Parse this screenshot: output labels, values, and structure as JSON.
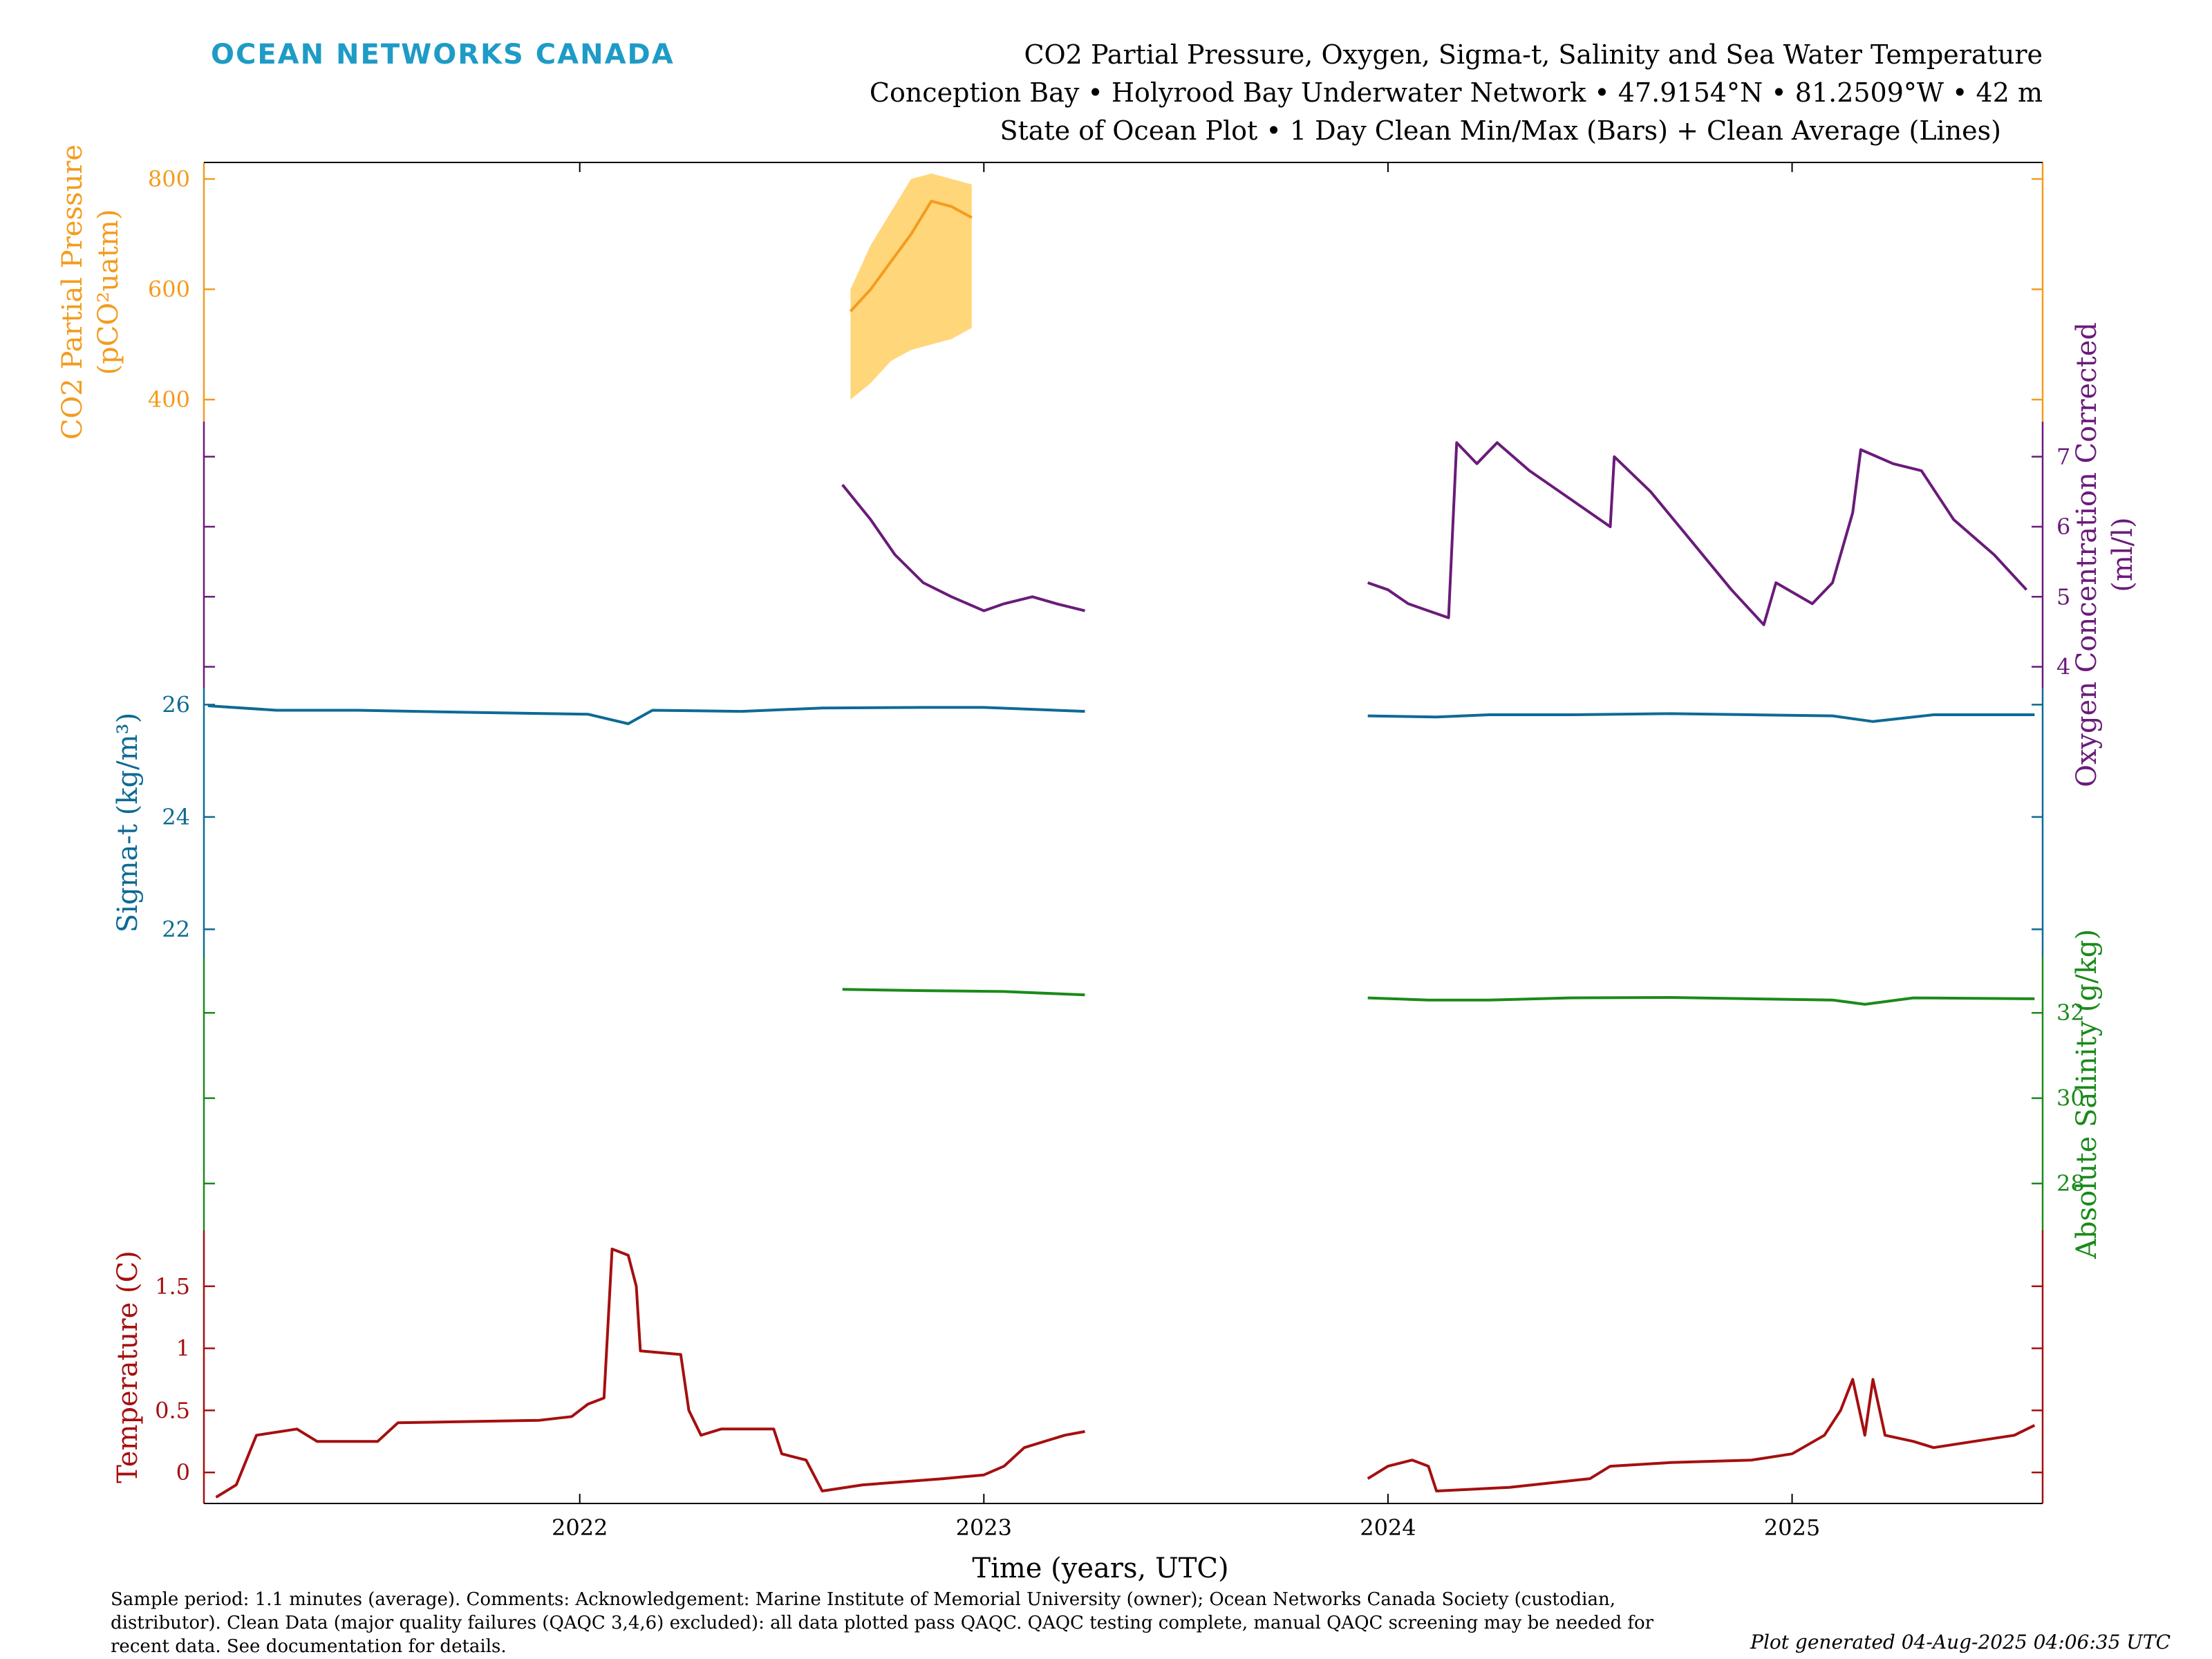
{
  "header": {
    "brand": "OCEAN NETWORKS CANADA",
    "title_line1": "CO2 Partial Pressure, Oxygen, Sigma-t, Salinity and Sea Water Temperature",
    "title_line2": "Conception Bay • Holyrood Bay Underwater Network • 47.9154°N • 81.2509°W • 42 m",
    "title_line3": "State of Ocean Plot • 1 Day Clean Min/Max (Bars) + Clean Average (Lines)"
  },
  "footer": {
    "line1": "Sample period: 1.1 minutes (average). Comments: Acknowledgement: Marine Institute of Memorial University (owner); Ocean Networks Canada Society (custodian,",
    "line2": "distributor). Clean Data (major quality failures (QAQC 3,4,6) excluded): all data plotted pass QAQC. QAQC testing complete, manual QAQC screening may be needed for",
    "line3": "recent data. See documentation for details.",
    "generated": "Plot generated 04-Aug-2025 04:06:35 UTC"
  },
  "chart_data": {
    "type": "line",
    "xlabel": "Time (years, UTC)",
    "xlim": [
      2021.07,
      2025.62
    ],
    "x_ticks": [
      "2022",
      "2023",
      "2024",
      "2025"
    ],
    "x_tick_values": [
      2022,
      2023,
      2024,
      2025
    ],
    "panels": [
      {
        "id": "co2",
        "ylabel_line1": "CO2 Partial Pressure",
        "ylabel_line2": "(pCO²uatm)",
        "side": "left",
        "color": "#f39c1f",
        "band_color": "#ffd67a",
        "ylim": [
          360,
          830
        ],
        "y_ticks": [
          400,
          600,
          800
        ],
        "segments": [
          {
            "avg": [
              [
                2022.67,
                560
              ],
              [
                2022.72,
                600
              ],
              [
                2022.77,
                650
              ],
              [
                2022.82,
                700
              ],
              [
                2022.87,
                760
              ],
              [
                2022.92,
                750
              ],
              [
                2022.97,
                730
              ]
            ],
            "min": [
              [
                2022.67,
                400
              ],
              [
                2022.72,
                430
              ],
              [
                2022.77,
                470
              ],
              [
                2022.82,
                490
              ],
              [
                2022.87,
                500
              ],
              [
                2022.92,
                510
              ],
              [
                2022.97,
                530
              ]
            ],
            "max": [
              [
                2022.67,
                600
              ],
              [
                2022.72,
                680
              ],
              [
                2022.77,
                740
              ],
              [
                2022.82,
                800
              ],
              [
                2022.87,
                810
              ],
              [
                2022.92,
                800
              ],
              [
                2022.97,
                790
              ]
            ]
          }
        ]
      },
      {
        "id": "oxygen",
        "ylabel_line1": "Oxygen Concentration Corrected",
        "ylabel_line2": "(ml/l)",
        "side": "right",
        "color": "#6a1b7a",
        "band_color": "#d8cdea",
        "ylim": [
          3.7,
          7.5
        ],
        "y_ticks": [
          4,
          5,
          6,
          7
        ],
        "segments": [
          {
            "avg": [
              [
                2022.65,
                6.6
              ],
              [
                2022.72,
                6.1
              ],
              [
                2022.78,
                5.6
              ],
              [
                2022.85,
                5.2
              ],
              [
                2022.92,
                5.0
              ],
              [
                2023.0,
                4.8
              ],
              [
                2023.05,
                4.9
              ],
              [
                2023.12,
                5.0
              ],
              [
                2023.18,
                4.9
              ],
              [
                2023.25,
                4.8
              ]
            ]
          },
          {
            "avg": [
              [
                2023.95,
                5.2
              ],
              [
                2024.0,
                5.1
              ],
              [
                2024.05,
                4.9
              ],
              [
                2024.1,
                4.8
              ],
              [
                2024.15,
                4.7
              ],
              [
                2024.17,
                7.2
              ],
              [
                2024.22,
                6.9
              ],
              [
                2024.27,
                7.2
              ],
              [
                2024.35,
                6.8
              ],
              [
                2024.45,
                6.4
              ],
              [
                2024.55,
                6.0
              ],
              [
                2024.56,
                7.0
              ],
              [
                2024.65,
                6.5
              ],
              [
                2024.75,
                5.8
              ],
              [
                2024.85,
                5.1
              ],
              [
                2024.93,
                4.6
              ],
              [
                2024.96,
                5.2
              ],
              [
                2025.05,
                4.9
              ],
              [
                2025.1,
                5.2
              ],
              [
                2025.15,
                6.2
              ],
              [
                2025.17,
                7.1
              ],
              [
                2025.25,
                6.9
              ],
              [
                2025.32,
                6.8
              ],
              [
                2025.4,
                6.1
              ],
              [
                2025.5,
                5.6
              ],
              [
                2025.58,
                5.1
              ]
            ]
          }
        ]
      },
      {
        "id": "sigma",
        "ylabel_line1": "Sigma-t (kg/m³)",
        "side": "left",
        "color": "#0e6a94",
        "band_color": "#b6d3e8",
        "ylim": [
          21.5,
          26.3
        ],
        "y_ticks": [
          22,
          24,
          26
        ],
        "segments": [
          {
            "avg": [
              [
                2021.08,
                25.98
              ],
              [
                2021.25,
                25.9
              ],
              [
                2021.45,
                25.9
              ],
              [
                2021.75,
                25.86
              ],
              [
                2022.02,
                25.83
              ],
              [
                2022.12,
                25.66
              ],
              [
                2022.18,
                25.9
              ],
              [
                2022.4,
                25.88
              ],
              [
                2022.6,
                25.94
              ],
              [
                2022.85,
                25.95
              ],
              [
                2023.0,
                25.95
              ],
              [
                2023.25,
                25.88
              ]
            ]
          },
          {
            "avg": [
              [
                2023.95,
                25.8
              ],
              [
                2024.12,
                25.78
              ],
              [
                2024.25,
                25.82
              ],
              [
                2024.45,
                25.82
              ],
              [
                2024.7,
                25.84
              ],
              [
                2024.9,
                25.82
              ],
              [
                2025.1,
                25.8
              ],
              [
                2025.2,
                25.7
              ],
              [
                2025.35,
                25.82
              ],
              [
                2025.6,
                25.82
              ]
            ]
          }
        ]
      },
      {
        "id": "salinity",
        "ylabel_line1": "Absolute Salinity (g/kg)",
        "side": "right",
        "color": "#1a8a1a",
        "band_color": "#b6d3e8",
        "ylim": [
          26.9,
          33.3
        ],
        "y_ticks": [
          28,
          30,
          32
        ],
        "segments": [
          {
            "avg": [
              [
                2022.65,
                32.55
              ],
              [
                2022.85,
                32.52
              ],
              [
                2023.05,
                32.5
              ],
              [
                2023.25,
                32.42
              ]
            ]
          },
          {
            "avg": [
              [
                2023.95,
                32.35
              ],
              [
                2024.1,
                32.3
              ],
              [
                2024.25,
                32.3
              ],
              [
                2024.45,
                32.35
              ],
              [
                2024.7,
                32.36
              ],
              [
                2024.9,
                32.33
              ],
              [
                2025.1,
                32.3
              ],
              [
                2025.18,
                32.2
              ],
              [
                2025.3,
                32.35
              ],
              [
                2025.6,
                32.33
              ]
            ]
          }
        ]
      },
      {
        "id": "temperature",
        "ylabel_line1": "Temperature (C)",
        "side": "left",
        "color": "#a50f0f",
        "band_color": "#bfe6bf",
        "ylim": [
          -0.25,
          1.95
        ],
        "y_ticks": [
          0,
          0.5,
          1,
          1.5
        ],
        "y_tick_labels": [
          "0",
          "0.5",
          "1",
          "1.5"
        ],
        "segments": [
          {
            "avg": [
              [
                2021.1,
                -0.2
              ],
              [
                2021.15,
                -0.1
              ],
              [
                2021.2,
                0.3
              ],
              [
                2021.3,
                0.35
              ],
              [
                2021.35,
                0.25
              ],
              [
                2021.5,
                0.25
              ],
              [
                2021.55,
                0.4
              ],
              [
                2021.9,
                0.42
              ],
              [
                2021.98,
                0.45
              ],
              [
                2022.02,
                0.55
              ],
              [
                2022.06,
                0.6
              ],
              [
                2022.08,
                1.8
              ],
              [
                2022.12,
                1.75
              ],
              [
                2022.14,
                1.5
              ],
              [
                2022.15,
                0.98
              ],
              [
                2022.25,
                0.95
              ],
              [
                2022.27,
                0.5
              ],
              [
                2022.3,
                0.3
              ],
              [
                2022.35,
                0.35
              ],
              [
                2022.48,
                0.35
              ],
              [
                2022.5,
                0.15
              ],
              [
                2022.56,
                0.1
              ],
              [
                2022.6,
                -0.15
              ],
              [
                2022.7,
                -0.1
              ],
              [
                2022.9,
                -0.05
              ],
              [
                2023.0,
                -0.02
              ],
              [
                2023.05,
                0.05
              ],
              [
                2023.1,
                0.2
              ],
              [
                2023.2,
                0.3
              ],
              [
                2023.25,
                0.33
              ]
            ]
          },
          {
            "avg": [
              [
                2023.95,
                -0.05
              ],
              [
                2024.0,
                0.05
              ],
              [
                2024.06,
                0.1
              ],
              [
                2024.1,
                0.05
              ],
              [
                2024.12,
                -0.15
              ],
              [
                2024.3,
                -0.12
              ],
              [
                2024.5,
                -0.05
              ],
              [
                2024.55,
                0.05
              ],
              [
                2024.7,
                0.08
              ],
              [
                2024.9,
                0.1
              ],
              [
                2025.0,
                0.15
              ],
              [
                2025.08,
                0.3
              ],
              [
                2025.12,
                0.5
              ],
              [
                2025.15,
                0.75
              ],
              [
                2025.18,
                0.3
              ],
              [
                2025.2,
                0.75
              ],
              [
                2025.23,
                0.3
              ],
              [
                2025.3,
                0.25
              ],
              [
                2025.35,
                0.2
              ],
              [
                2025.45,
                0.25
              ],
              [
                2025.55,
                0.3
              ],
              [
                2025.6,
                0.38
              ]
            ]
          }
        ]
      }
    ]
  }
}
